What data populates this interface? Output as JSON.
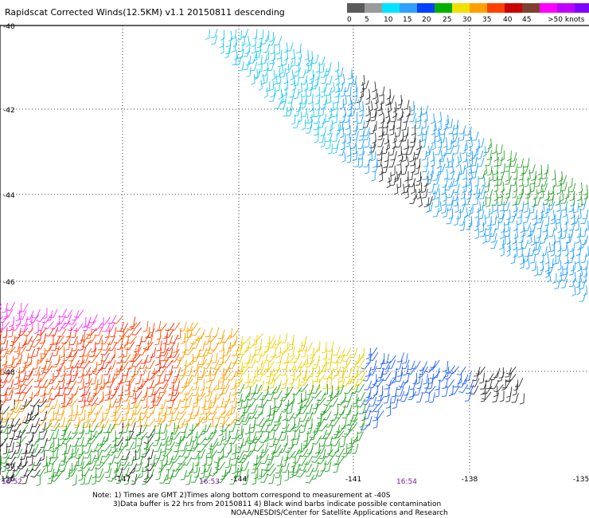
{
  "title": "Rapidscat Corrected Winds(12.5KM) v1.1 20150811 descending",
  "legend": {
    "labels": [
      "0",
      "5",
      "10",
      "15",
      "20",
      "25",
      "30",
      "35",
      "40",
      "45",
      ">50 knots"
    ],
    "colors": [
      "#5a5a5a",
      "#9a9a9a",
      "#00e4ff",
      "#2fa0ff",
      "#0040ff",
      "#00b000",
      "#f0e000",
      "#ffa000",
      "#ff4000",
      "#cc0000",
      "#804030",
      "#ff00ff",
      "#c000ff",
      "#8000ff"
    ]
  },
  "map": {
    "lon_ticks": [
      "-150",
      "-147",
      "-144",
      "-141",
      "-138",
      "-135"
    ],
    "lat_ticks": [
      "-40",
      "-42",
      "-44",
      "-46",
      "-48",
      "-50"
    ],
    "time_marks": [
      "16:52",
      "16:53",
      "16:54"
    ]
  },
  "notes": {
    "line1": "Note: 1) Times are GMT 2)Times along bottom correspond to measurement at -40S",
    "line2": "3)Data buffer is 22 hrs from 20150811 4) Black wind barbs indicate possible contamination",
    "line3": "NOAA/NESDIS/Center for Satellite Applications and Research"
  }
}
